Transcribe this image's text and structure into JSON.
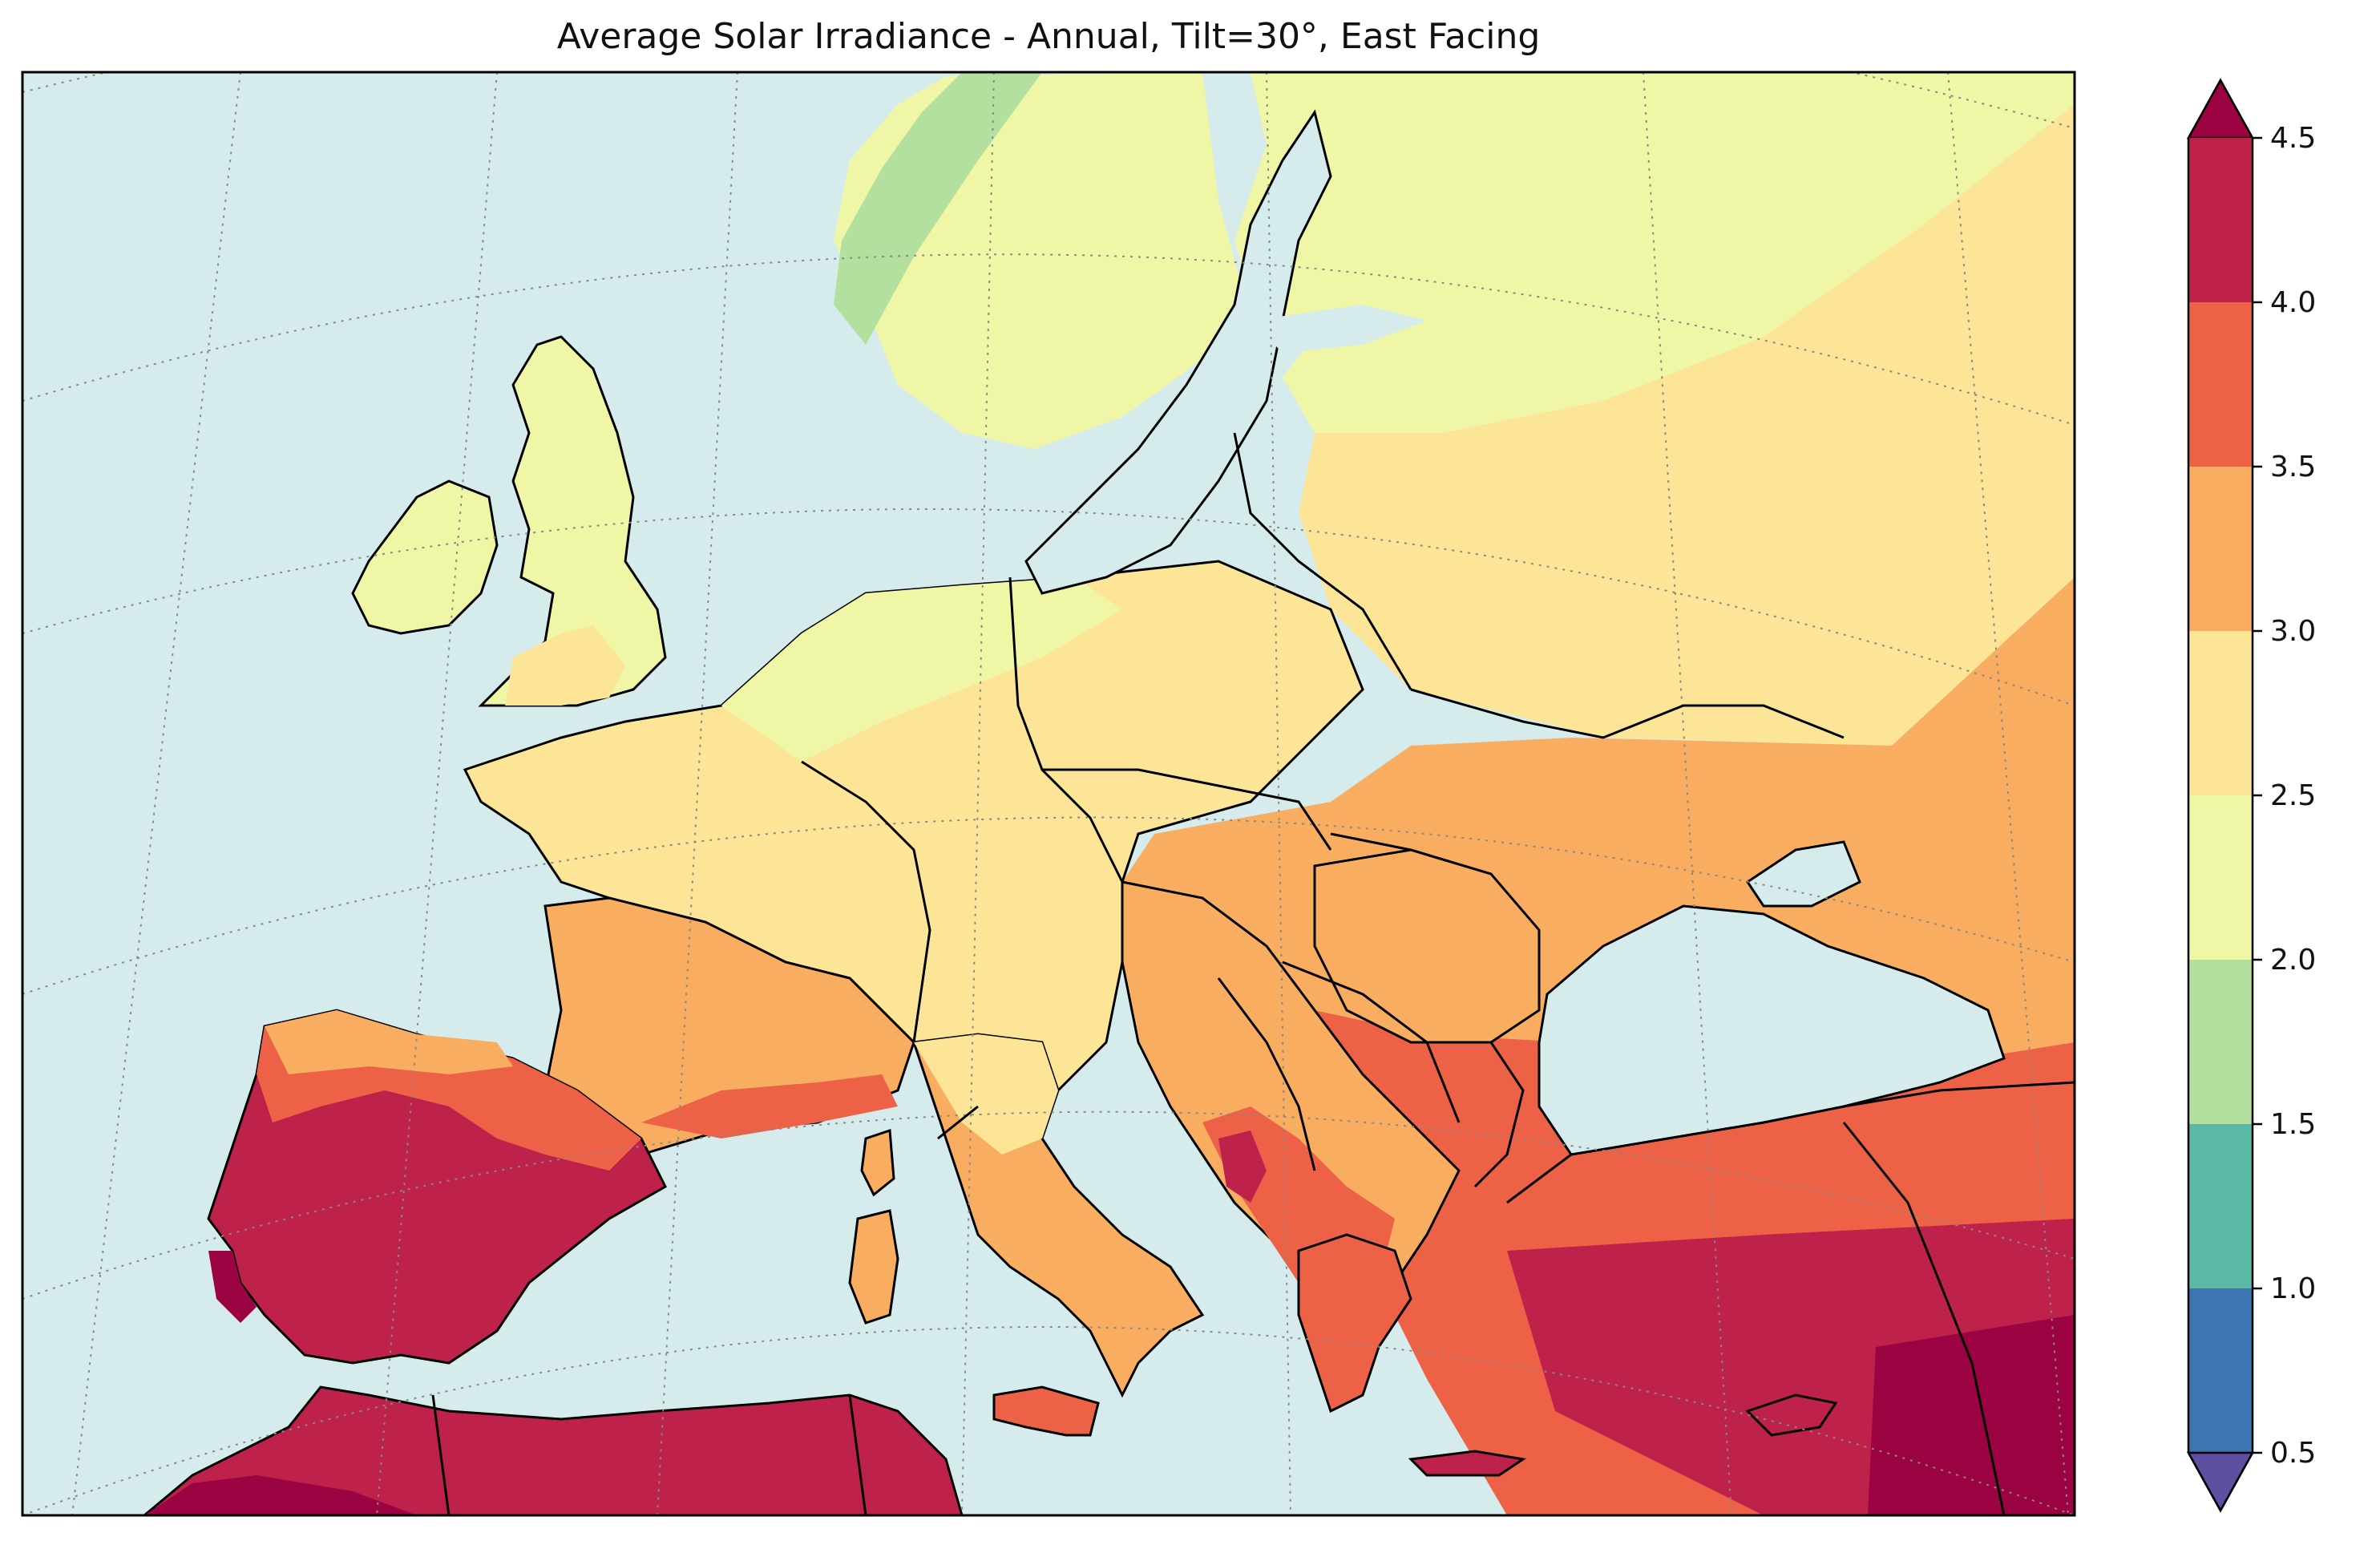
{
  "title": "Average Solar Irradiance - Annual, Tilt=30°, East Facing",
  "colorbar": {
    "ticks": [
      "4.5",
      "4.0",
      "3.5",
      "3.0",
      "2.5",
      "2.0",
      "1.5",
      "1.0",
      "0.5"
    ],
    "levels": [
      {
        "range": "4.0-4.5",
        "color": "#be2149"
      },
      {
        "range": "3.5-4.0",
        "color": "#ed6246"
      },
      {
        "range": "3.0-3.5",
        "color": "#f9ad60"
      },
      {
        "range": "2.5-3.0",
        "color": "#fde597"
      },
      {
        "range": "2.0-2.5",
        "color": "#eff7a6"
      },
      {
        "range": "1.5-2.0",
        "color": "#b3df9f"
      },
      {
        "range": "1.0-1.5",
        "color": "#5cb9a6"
      },
      {
        "range": "0.5-1.0",
        "color": "#3f74b2"
      }
    ],
    "extend_max_color": "#9b0343",
    "extend_min_color": "#5e4fa2"
  },
  "map": {
    "ocean_color": "#d6ecec",
    "gridlines": "dotted",
    "coastline_color": "#000000"
  }
}
